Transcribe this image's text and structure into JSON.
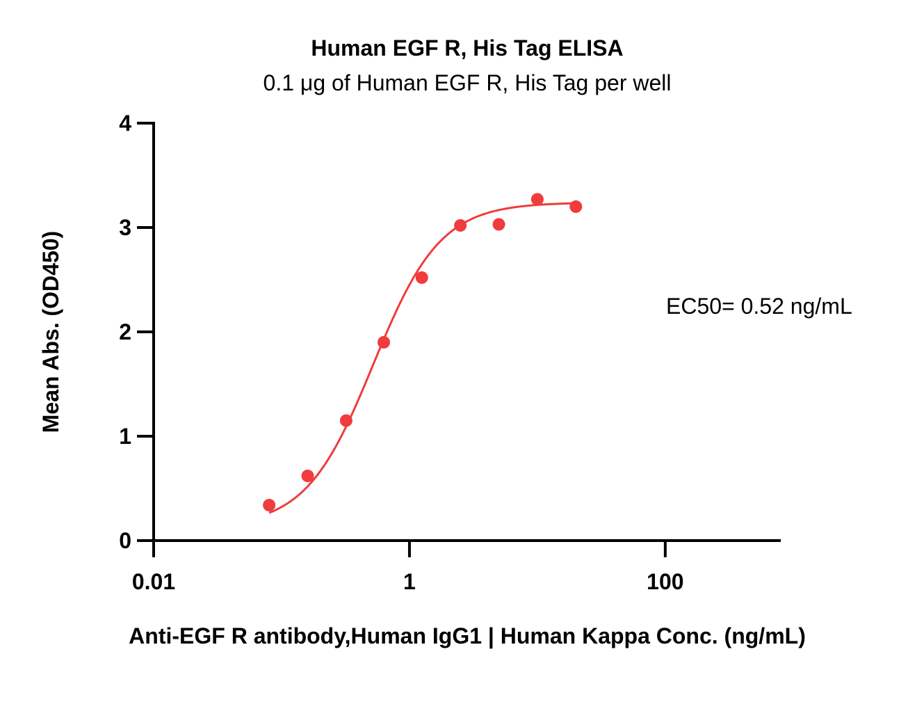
{
  "chart_data": {
    "type": "scatter",
    "title": "Human EGF R, His Tag ELISA",
    "subtitle": "0.1 μg of Human EGF R, His Tag per well",
    "xlabel": "Anti-EGF R antibody,Human IgG1 | Human Kappa Conc. (ng/mL)",
    "ylabel": "Mean Abs. (OD450)",
    "x_scale": "log",
    "xlim": [
      0.01,
      800
    ],
    "ylim": [
      0,
      4
    ],
    "x_ticks": [
      0.01,
      1,
      100
    ],
    "x_tick_labels": [
      "0.01",
      "1",
      "100"
    ],
    "y_ticks": [
      0,
      1,
      2,
      3,
      4
    ],
    "y_tick_labels": [
      "0",
      "1",
      "2",
      "3",
      "4"
    ],
    "grid": false,
    "series": [
      {
        "x": [
          0.08,
          0.16,
          0.32,
          0.63,
          1.25,
          2.5,
          5,
          10,
          20
        ],
        "y": [
          0.34,
          0.62,
          1.15,
          1.9,
          2.52,
          3.02,
          3.03,
          3.27,
          3.2
        ],
        "color": "#f03c3c",
        "fit": "4PL"
      }
    ],
    "fit_params": {
      "bottom": 0.13,
      "top": 3.24,
      "ec50": 0.52,
      "hill": 1.65
    },
    "annotations": [
      {
        "text": "EC50= 0.52 ng/mL"
      }
    ]
  }
}
